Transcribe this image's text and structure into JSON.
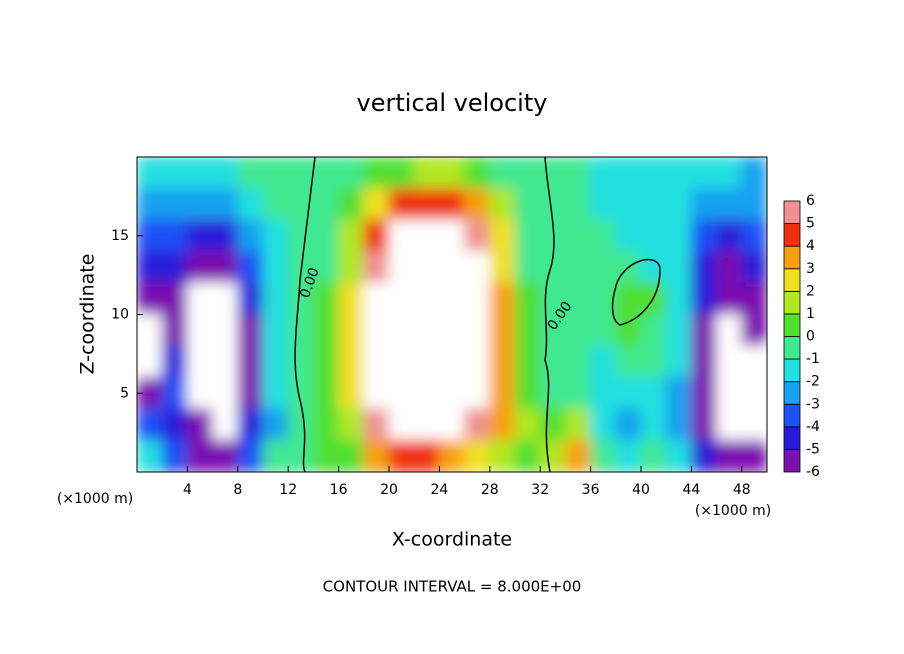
{
  "chart_data": {
    "type": "heatmap",
    "title": "vertical velocity",
    "x_label": "X-coordinate",
    "y_label": "Z-coordinate",
    "x_unit": "(×1000 m)",
    "y_unit": "(×1000 m)",
    "footer": "CONTOUR INTERVAL = 8.000E+00",
    "contour_labels": [
      "0.00",
      "0.00"
    ],
    "xlim": [
      0,
      50
    ],
    "ylim": [
      0,
      20
    ],
    "xticks": [
      4,
      8,
      12,
      16,
      20,
      24,
      28,
      32,
      36,
      40,
      44,
      48
    ],
    "yticks": [
      5,
      10,
      15
    ],
    "x": [
      1,
      3,
      5,
      7,
      9,
      11,
      13,
      15,
      17,
      19,
      21,
      23,
      25,
      27,
      29,
      31,
      33,
      35,
      37,
      39,
      41,
      43,
      45,
      47,
      49
    ],
    "y": [
      19,
      17,
      15,
      13,
      11,
      9,
      7,
      5,
      3,
      1
    ],
    "values": [
      [
        -1,
        -1,
        -1,
        -1,
        0,
        0,
        0,
        0,
        0,
        1,
        1,
        2,
        2,
        1,
        0,
        0,
        0,
        0,
        -1,
        -1,
        -1,
        -1,
        -1,
        -1,
        -2
      ],
      [
        -2,
        -2,
        -2,
        -2,
        -1,
        0,
        0,
        0,
        1,
        3,
        5,
        5,
        5,
        4,
        2,
        0,
        0,
        0,
        -1,
        -1,
        -1,
        -1,
        -2,
        -2,
        -2
      ],
      [
        -3,
        -3,
        -4,
        -4,
        -2,
        -1,
        0,
        0,
        2,
        5,
        8,
        8,
        8,
        6,
        3,
        0,
        0,
        0,
        0,
        -1,
        -1,
        -1,
        -3,
        -4,
        -3
      ],
      [
        -4,
        -4,
        -5,
        -5,
        -3,
        -1,
        0,
        0,
        2,
        6,
        8,
        8,
        8,
        7,
        3,
        0,
        0,
        0,
        0,
        0,
        -1,
        -1,
        -4,
        -5,
        -4
      ],
      [
        -5,
        -5,
        -8,
        -8,
        -4,
        -1,
        0,
        1,
        3,
        7,
        8,
        8,
        8,
        8,
        4,
        1,
        0,
        0,
        0,
        1,
        1,
        -1,
        -4,
        -6,
        -5
      ],
      [
        -8,
        -5,
        -8,
        -8,
        -5,
        -1,
        0,
        1,
        3,
        8,
        8,
        8,
        8,
        8,
        4,
        1,
        0,
        0,
        0,
        1,
        0,
        -1,
        -5,
        -8,
        -6
      ],
      [
        -8,
        -4,
        -8,
        -8,
        -5,
        -1,
        0,
        1,
        3,
        8,
        8,
        8,
        8,
        8,
        4,
        1,
        0,
        0,
        -1,
        0,
        0,
        -1,
        -5,
        -8,
        -8
      ],
      [
        -5,
        -3,
        -8,
        -8,
        -5,
        -1,
        0,
        1,
        3,
        7,
        8,
        8,
        8,
        8,
        4,
        1,
        0,
        0,
        -1,
        -1,
        -1,
        -2,
        -5,
        -8,
        -8
      ],
      [
        -3,
        -4,
        -6,
        -8,
        -4,
        -2,
        0,
        1,
        2,
        6,
        8,
        8,
        7,
        6,
        4,
        2,
        1,
        2,
        -1,
        -2,
        -1,
        -2,
        -5,
        -8,
        -7
      ],
      [
        -1,
        -3,
        -5,
        -5,
        -3,
        0,
        0,
        1,
        1,
        4,
        5,
        5,
        4,
        3,
        2,
        1,
        2,
        4,
        0,
        -1,
        0,
        -1,
        -4,
        -5,
        -5
      ]
    ],
    "levels": [
      -6,
      -5,
      -4,
      -3,
      -2,
      -1,
      0,
      1,
      2,
      3,
      4,
      5,
      6
    ],
    "colors": [
      "#7a10b0",
      "#2a1ad8",
      "#1e50f5",
      "#18a0f0",
      "#20e0e0",
      "#40e890",
      "#50e030",
      "#b0e820",
      "#f0e020",
      "#f8a010",
      "#f03010",
      "#f09090"
    ],
    "out_of_range_color": "#ffffff"
  }
}
